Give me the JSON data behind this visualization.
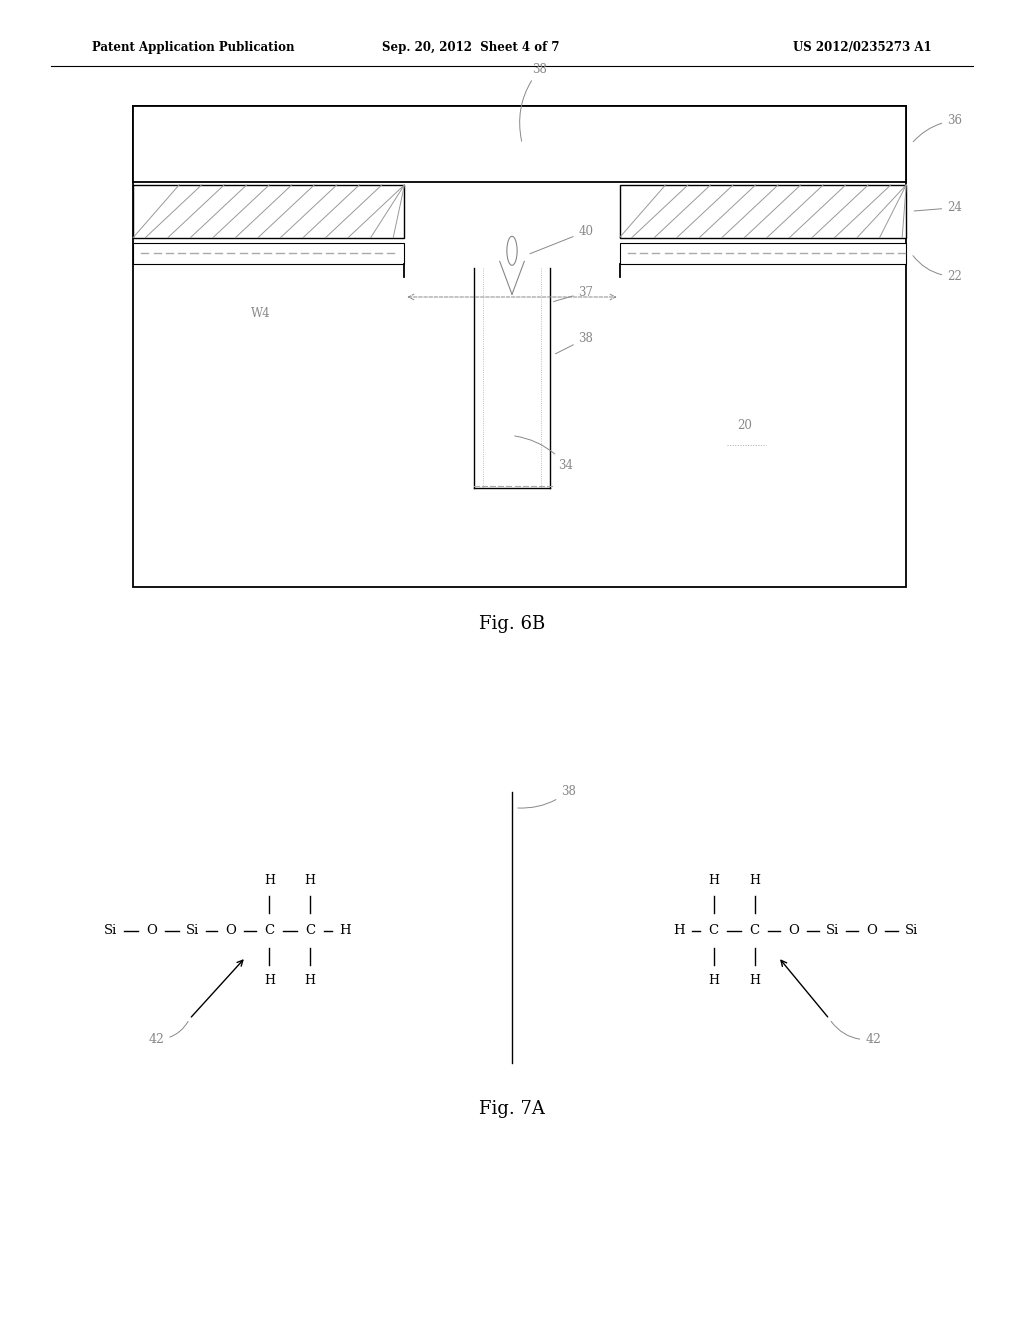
{
  "header_left": "Patent Application Publication",
  "header_center": "Sep. 20, 2012  Sheet 4 of 7",
  "header_right": "US 2012/0235273 A1",
  "fig6b_label": "Fig. 6B",
  "fig7a_label": "Fig. 7A",
  "bg_color": "#ffffff",
  "line_color": "#000000",
  "label_color": "#888888"
}
